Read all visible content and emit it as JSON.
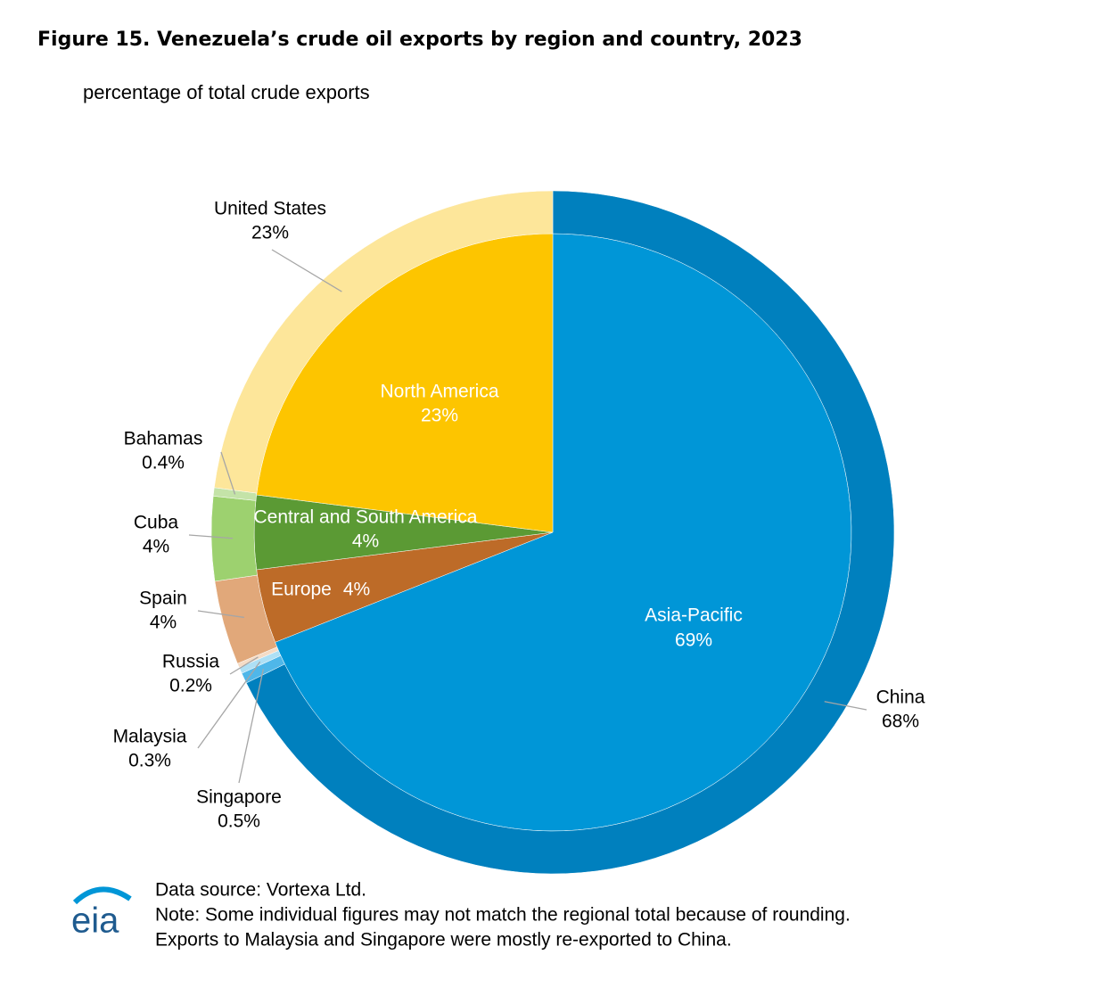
{
  "chart_data": {
    "type": "nested-pie",
    "title": "Figure 15. Venezuela’s crude oil exports by region and country, 2023",
    "subtitle": "percentage of total crude exports",
    "inner": {
      "categories": [
        "Asia-Pacific",
        "Europe",
        "Central and South America",
        "North America"
      ],
      "values": [
        69,
        4,
        4,
        23
      ],
      "value_labels": [
        "69%",
        "4%",
        "4%",
        "23%"
      ],
      "colors": [
        "#0096d7",
        "#bd6b28",
        "#5b9a34",
        "#fdc500"
      ]
    },
    "outer": {
      "categories": [
        "China",
        "Singapore",
        "Malaysia",
        "Russia",
        "Spain",
        "Cuba",
        "Bahamas",
        "United States"
      ],
      "values": [
        68,
        0.5,
        0.3,
        0.2,
        4,
        4,
        0.4,
        23
      ],
      "value_labels": [
        "68%",
        "0.5%",
        "0.3%",
        "0.2%",
        "4%",
        "4%",
        "0.4%",
        "23%"
      ],
      "colors": [
        "#0080be",
        "#4fb7e9",
        "#aee0f5",
        "#f5dcc6",
        "#e1a87a",
        "#9dd16f",
        "#c4e3a8",
        "#fde69a"
      ]
    },
    "source": "Data source: Vortexa Ltd.",
    "notes": [
      "Note: Some individual figures may not match the regional total because of rounding.",
      "Exports to Malaysia and Singapore were mostly re-exported to China."
    ],
    "logo": "eia"
  }
}
